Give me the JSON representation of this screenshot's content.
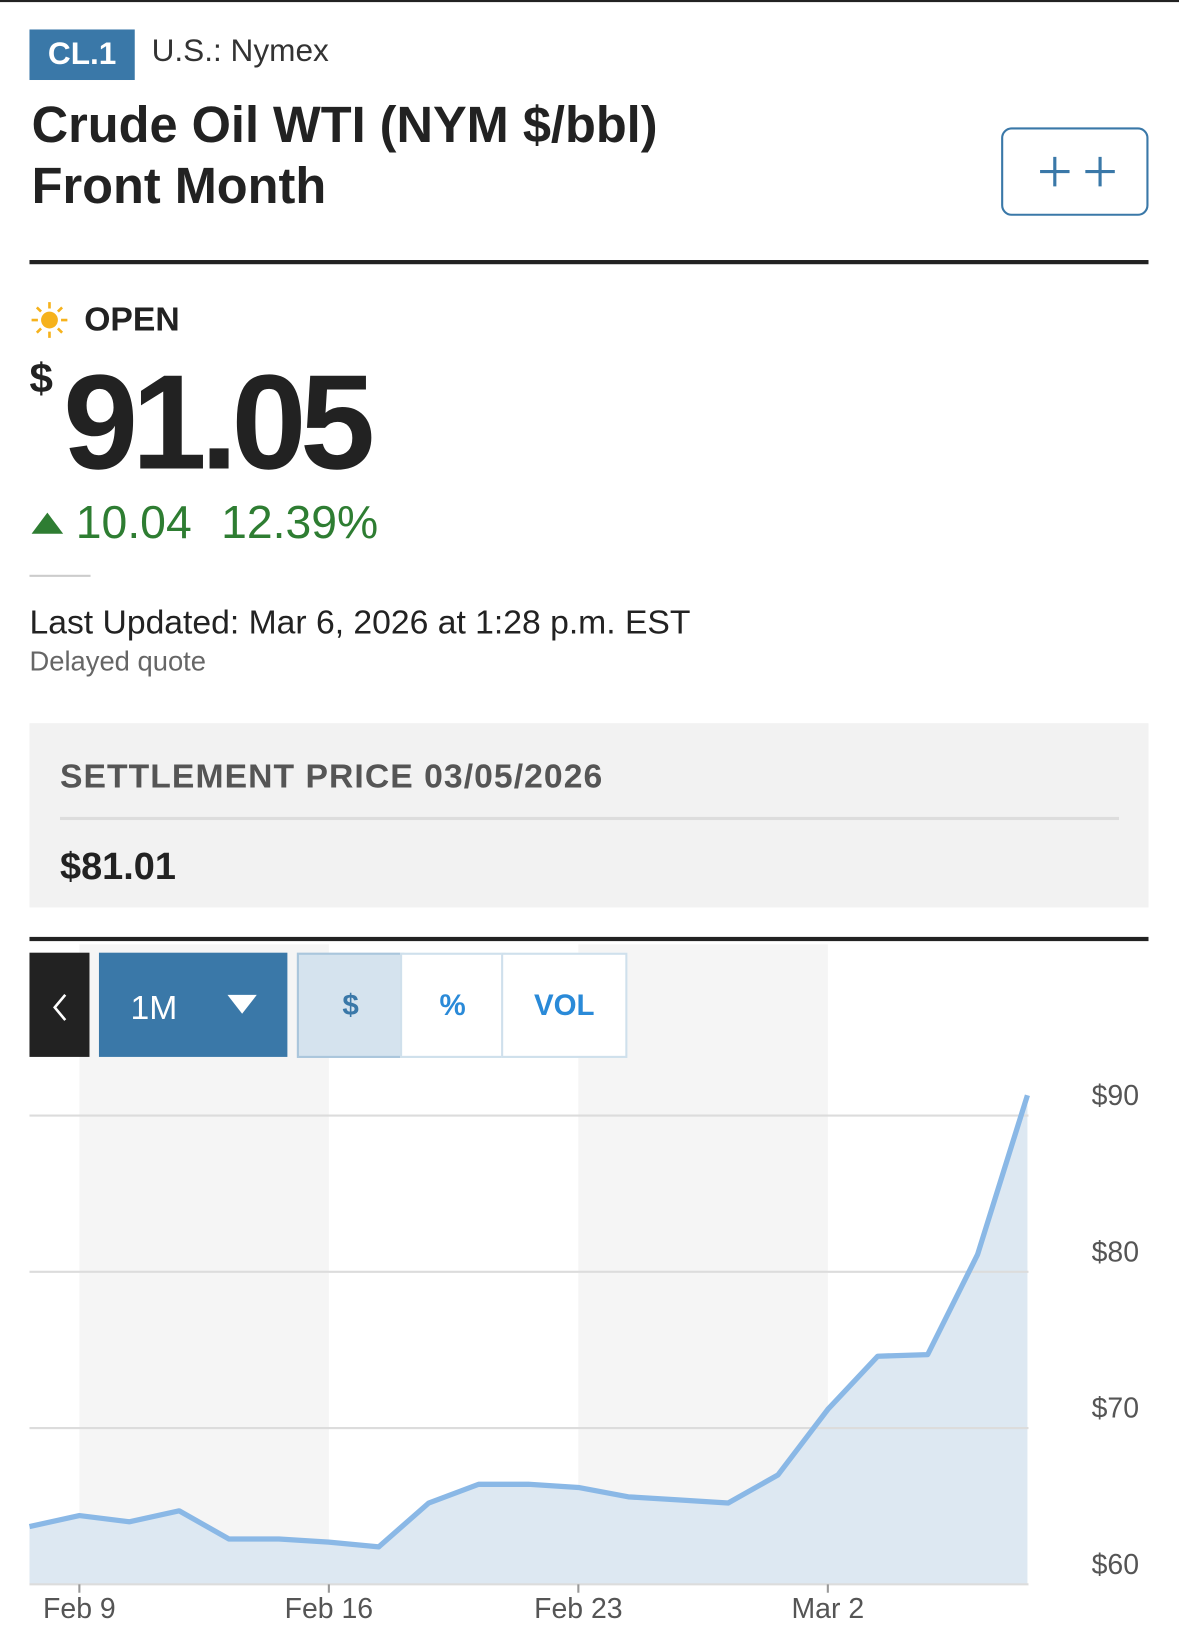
{
  "header": {
    "symbol": "CL.1",
    "exchange": "U.S.: Nymex",
    "title_line1": "Crude Oil WTI (NYM $/bbl)",
    "title_line2": "Front Month"
  },
  "quote": {
    "status": "OPEN",
    "currency": "$",
    "price": "91.05",
    "change": "10.04",
    "change_percent": "12.39%",
    "last_updated": "Last Updated: Mar 6, 2026 at 1:28 p.m. EST",
    "note": "Delayed quote"
  },
  "settlement": {
    "label": "SETTLEMENT PRICE 03/05/2026",
    "value": "$81.01"
  },
  "controls": {
    "range": "1M",
    "tabs": [
      "$",
      "%",
      "VOL"
    ]
  },
  "chart_data": {
    "type": "area",
    "categories": [
      null,
      "Feb 9",
      null,
      null,
      null,
      null,
      "Feb 16",
      null,
      null,
      null,
      null,
      "Feb 23",
      null,
      null,
      null,
      null,
      "Mar 2",
      null,
      null,
      null,
      null
    ],
    "series": [
      {
        "color": "#8ab8e6",
        "fill": "#dde8f2",
        "values": [
          63.7,
          64.4,
          64.0,
          64.7,
          62.9,
          62.9,
          62.7,
          62.4,
          65.2,
          66.4,
          66.4,
          66.2,
          65.6,
          65.4,
          65.2,
          67.0,
          71.2,
          74.6,
          74.7,
          81.1,
          91.3
        ]
      }
    ],
    "ylim": [
      60,
      92
    ],
    "yticks": [
      {
        "value": 60,
        "label": "$60"
      },
      {
        "value": 70,
        "label": "$70"
      },
      {
        "value": 80,
        "label": "$80"
      },
      {
        "value": 90,
        "label": "$90"
      }
    ],
    "grid": true
  }
}
